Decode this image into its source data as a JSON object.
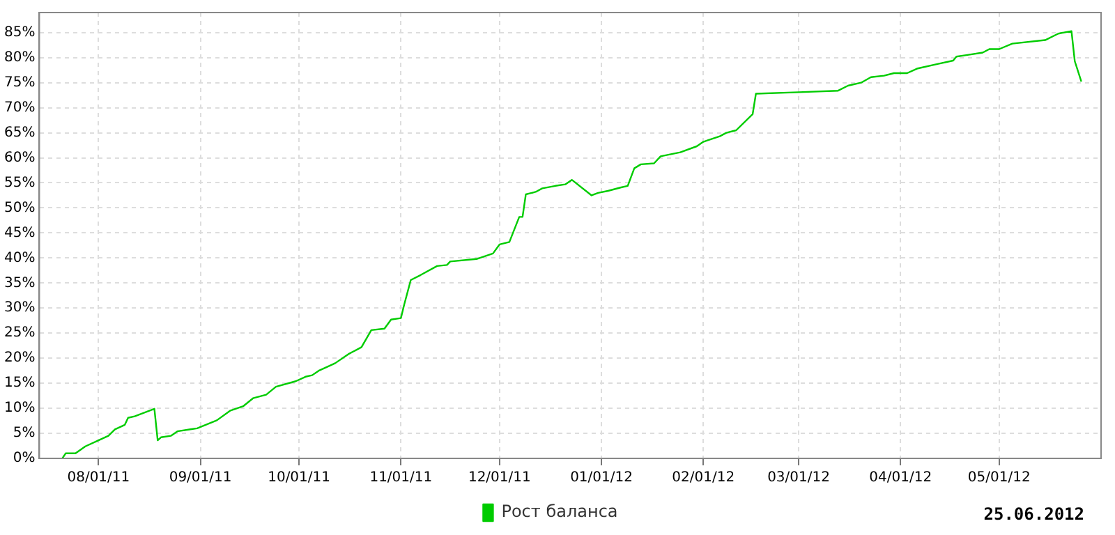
{
  "chart_data": {
    "type": "line",
    "annotations": [
      "25.06.2012"
    ],
    "legend": "bottom",
    "grid": true,
    "marker": "none",
    "line_style": "solid",
    "xlim": [
      "2011-07-14",
      "2012-06-01"
    ],
    "ylim": [
      0,
      89
    ],
    "xticks": [
      {
        "value": "2011-08-01",
        "label": "08/01/11"
      },
      {
        "value": "2011-09-01",
        "label": "09/01/11"
      },
      {
        "value": "2011-10-01",
        "label": "10/01/11"
      },
      {
        "value": "2011-11-01",
        "label": "11/01/11"
      },
      {
        "value": "2011-12-01",
        "label": "12/01/11"
      },
      {
        "value": "2012-01-01",
        "label": "01/01/12"
      },
      {
        "value": "2012-02-01",
        "label": "02/01/12"
      },
      {
        "value": "2012-03-01",
        "label": "03/01/12"
      },
      {
        "value": "2012-04-01",
        "label": "04/01/12"
      },
      {
        "value": "2012-05-01",
        "label": "05/01/12"
      }
    ],
    "yticks": [
      {
        "value": 0,
        "label": "0%"
      },
      {
        "value": 5,
        "label": "5%"
      },
      {
        "value": 10,
        "label": "10%"
      },
      {
        "value": 15,
        "label": "15%"
      },
      {
        "value": 20,
        "label": "20%"
      },
      {
        "value": 25,
        "label": "25%"
      },
      {
        "value": 30,
        "label": "30%"
      },
      {
        "value": 35,
        "label": "35%"
      },
      {
        "value": 40,
        "label": "40%"
      },
      {
        "value": 45,
        "label": "45%"
      },
      {
        "value": 50,
        "label": "50%"
      },
      {
        "value": 55,
        "label": "55%"
      },
      {
        "value": 60,
        "label": "60%"
      },
      {
        "value": 65,
        "label": "65%"
      },
      {
        "value": 70,
        "label": "70%"
      },
      {
        "value": 75,
        "label": "75%"
      },
      {
        "value": 80,
        "label": "80%"
      },
      {
        "value": 85,
        "label": "85%"
      }
    ],
    "x": [
      "2011-07-21",
      "2011-07-22",
      "2011-07-25",
      "2011-07-28",
      "2011-08-01",
      "2011-08-04",
      "2011-08-06",
      "2011-08-09",
      "2011-08-10",
      "2011-08-12",
      "2011-08-18",
      "2011-08-19",
      "2011-08-20",
      "2011-08-23",
      "2011-08-25",
      "2011-08-29",
      "2011-08-31",
      "2011-09-06",
      "2011-09-10",
      "2011-09-14",
      "2011-09-17",
      "2011-09-21",
      "2011-09-24",
      "2011-09-30",
      "2011-10-03",
      "2011-10-05",
      "2011-10-07",
      "2011-10-09",
      "2011-10-12",
      "2011-10-16",
      "2011-10-20",
      "2011-10-23",
      "2011-10-27",
      "2011-10-29",
      "2011-11-01",
      "2011-11-02",
      "2011-11-04",
      "2011-11-07",
      "2011-11-12",
      "2011-11-15",
      "2011-11-16",
      "2011-11-24",
      "2011-11-29",
      "2011-12-01",
      "2011-12-04",
      "2011-12-07",
      "2011-12-08",
      "2011-12-09",
      "2011-12-12",
      "2011-12-14",
      "2011-12-18",
      "2011-12-21",
      "2011-12-23",
      "2011-12-29",
      "2011-12-31",
      "2012-01-03",
      "2012-01-07",
      "2012-01-09",
      "2012-01-11",
      "2012-01-13",
      "2012-01-17",
      "2012-01-19",
      "2012-01-25",
      "2012-01-30",
      "2012-02-01",
      "2012-02-06",
      "2012-02-08",
      "2012-02-11",
      "2012-02-16",
      "2012-02-17",
      "2012-03-01",
      "2012-03-13",
      "2012-03-16",
      "2012-03-20",
      "2012-03-23",
      "2012-03-27",
      "2012-03-30",
      "2012-04-03",
      "2012-04-06",
      "2012-04-12",
      "2012-04-17",
      "2012-04-18",
      "2012-04-21",
      "2012-04-26",
      "2012-04-28",
      "2012-05-01",
      "2012-05-05",
      "2012-05-15",
      "2012-05-19",
      "2012-05-23",
      "2012-05-24",
      "2012-05-26"
    ],
    "series": [
      {
        "name": "Рост баланса",
        "color": "#00cc00",
        "values": [
          0,
          1.0,
          1.0,
          2.4,
          3.6,
          4.5,
          5.8,
          6.7,
          8.1,
          8.4,
          9.9,
          3.6,
          4.2,
          4.5,
          5.4,
          5.8,
          6.0,
          7.6,
          9.5,
          10.4,
          12.0,
          12.7,
          14.3,
          15.4,
          16.3,
          16.6,
          17.5,
          18.1,
          19.0,
          20.8,
          22.2,
          25.6,
          25.9,
          27.7,
          28.0,
          30.7,
          35.6,
          36.6,
          38.4,
          38.6,
          39.3,
          39.8,
          40.9,
          42.7,
          43.2,
          48.2,
          48.2,
          52.7,
          53.2,
          53.9,
          54.4,
          54.7,
          55.6,
          52.5,
          53.0,
          53.4,
          54.1,
          54.4,
          57.9,
          58.7,
          58.9,
          60.3,
          61.1,
          62.3,
          63.2,
          64.3,
          65.0,
          65.5,
          68.7,
          72.8,
          73.1,
          73.4,
          74.4,
          75.0,
          76.1,
          76.4,
          76.9,
          76.9,
          77.8,
          78.7,
          79.4,
          80.2,
          80.5,
          81.0,
          81.7,
          81.7,
          82.8,
          83.5,
          84.8,
          85.3,
          79.3,
          75.2
        ]
      }
    ]
  }
}
